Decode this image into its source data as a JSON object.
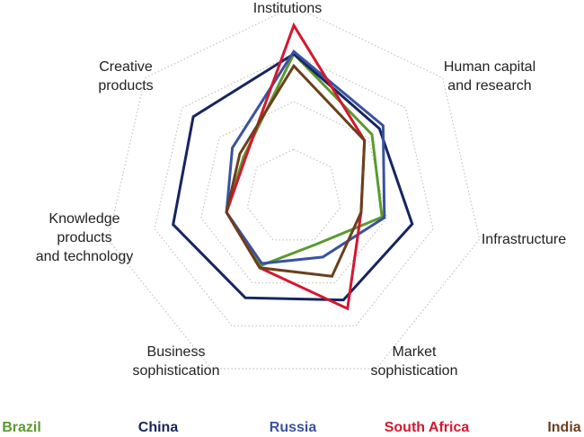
{
  "chart_data": {
    "type": "radar",
    "axes": [
      [
        "Institutions"
      ],
      [
        "Human capital",
        "and research"
      ],
      [
        "Infrastructure"
      ],
      [
        "Market",
        "sophistication"
      ],
      [
        "Business",
        "sophistication"
      ],
      [
        "Knowledge",
        "products",
        "and technology"
      ],
      [
        "Creative",
        "products"
      ]
    ],
    "range": [
      0,
      80
    ],
    "grid_levels": [
      20,
      40,
      60,
      80
    ],
    "grid": true,
    "legend_position": "bottom",
    "series": [
      {
        "name": "Brazil",
        "color": "#5c9a2f",
        "values": [
          60,
          42,
          38,
          22,
          32,
          29,
          27
        ]
      },
      {
        "name": "China",
        "color": "#17255f",
        "values": [
          60,
          46,
          51,
          48,
          47,
          52,
          54
        ]
      },
      {
        "name": "Russia",
        "color": "#3a52a0",
        "values": [
          61,
          48,
          39,
          28,
          31,
          29,
          33
        ]
      },
      {
        "name": "South Africa",
        "color": "#d4172f",
        "values": [
          72,
          38,
          29,
          52,
          33,
          29,
          26
        ]
      },
      {
        "name": "India",
        "color": "#6b3f1d",
        "values": [
          55,
          38,
          29,
          37,
          33,
          29,
          29
        ]
      }
    ]
  }
}
